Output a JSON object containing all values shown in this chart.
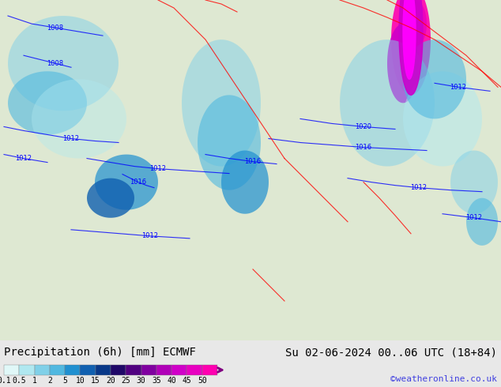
{
  "title_left": "Precipitation (6h) [mm] ECMWF",
  "title_right": "Su 02-06-2024 00..06 UTC (18+84)",
  "watermark": "©weatheronline.co.uk",
  "colorbar_values": [
    0.1,
    0.5,
    1,
    2,
    5,
    10,
    15,
    20,
    25,
    30,
    35,
    40,
    45,
    50
  ],
  "colorbar_colors": [
    "#e0f8f8",
    "#b0e8f0",
    "#80d0e8",
    "#50b8e0",
    "#2090d0",
    "#1060b0",
    "#083888",
    "#200868",
    "#500080",
    "#8000a0",
    "#b000b8",
    "#d000c8",
    "#e800c0",
    "#ff00b0"
  ],
  "bg_color": "#e8e8e8",
  "map_color": "#c8e8a0",
  "ocean_color": "#f0f0f0",
  "text_color": "#000000",
  "watermark_color": "#4040e0",
  "font_size_title": 10,
  "font_size_labels": 8,
  "font_size_watermark": 8,
  "precip_patches": [
    [
      80,
      350,
      70,
      60,
      0.5,
      "#80d0e8"
    ],
    [
      60,
      300,
      50,
      40,
      0.6,
      "#50b8e0"
    ],
    [
      100,
      280,
      60,
      50,
      0.4,
      "#b0e8f0"
    ],
    [
      160,
      200,
      40,
      35,
      0.7,
      "#2090d0"
    ],
    [
      140,
      180,
      30,
      25,
      0.8,
      "#1060b0"
    ],
    [
      280,
      300,
      50,
      80,
      0.5,
      "#80d0e8"
    ],
    [
      290,
      250,
      40,
      60,
      0.6,
      "#50b8e0"
    ],
    [
      310,
      200,
      30,
      40,
      0.7,
      "#2090d0"
    ],
    [
      520,
      380,
      25,
      70,
      0.9,
      "#ff00b0"
    ],
    [
      510,
      350,
      20,
      50,
      0.95,
      "#d000c8"
    ],
    [
      525,
      400,
      15,
      30,
      0.8,
      "#e800c0"
    ],
    [
      490,
      300,
      60,
      80,
      0.5,
      "#80d0e8"
    ],
    [
      560,
      280,
      50,
      60,
      0.5,
      "#b0e8f0"
    ],
    [
      550,
      330,
      40,
      50,
      0.6,
      "#50b8e0"
    ],
    [
      600,
      200,
      30,
      40,
      0.5,
      "#80d0e8"
    ],
    [
      610,
      150,
      20,
      30,
      0.6,
      "#50b8e0"
    ]
  ],
  "blue_isobars": [
    {
      "label": "1008",
      "x": [
        10,
        40,
        70,
        100,
        130
      ],
      "y": [
        410,
        400,
        395,
        390,
        385
      ]
    },
    {
      "label": "1008",
      "x": [
        30,
        50,
        70,
        90
      ],
      "y": [
        360,
        355,
        350,
        345
      ]
    },
    {
      "label": "1012",
      "x": [
        5,
        30,
        60,
        90,
        120,
        150
      ],
      "y": [
        270,
        265,
        260,
        255,
        252,
        250
      ]
    },
    {
      "label": "1012",
      "x": [
        5,
        30,
        60
      ],
      "y": [
        235,
        230,
        225
      ]
    },
    {
      "label": "1012",
      "x": [
        110,
        140,
        170,
        200,
        230,
        260,
        290
      ],
      "y": [
        230,
        225,
        220,
        217,
        215,
        213,
        211
      ]
    },
    {
      "label": "1016",
      "x": [
        155,
        165,
        175,
        185,
        195
      ],
      "y": [
        210,
        205,
        200,
        196,
        193
      ]
    },
    {
      "label": "1016",
      "x": [
        260,
        290,
        320,
        350
      ],
      "y": [
        235,
        230,
        226,
        223
      ]
    },
    {
      "label": "1016",
      "x": [
        340,
        380,
        420,
        460,
        500,
        540
      ],
      "y": [
        255,
        250,
        247,
        244,
        242,
        240
      ]
    },
    {
      "label": "1020",
      "x": [
        380,
        420,
        460,
        500
      ],
      "y": [
        280,
        274,
        270,
        267
      ]
    },
    {
      "label": "1012",
      "x": [
        440,
        470,
        500,
        530,
        570,
        610
      ],
      "y": [
        205,
        200,
        196,
        193,
        190,
        188
      ]
    },
    {
      "label": "1012",
      "x": [
        550,
        580,
        620
      ],
      "y": [
        325,
        320,
        315
      ]
    },
    {
      "label": "1012",
      "x": [
        90,
        140,
        190,
        240
      ],
      "y": [
        140,
        136,
        132,
        129
      ]
    },
    {
      "label": "1012",
      "x": [
        560,
        600,
        634
      ],
      "y": [
        160,
        155,
        150
      ]
    }
  ],
  "red_isobars": [
    {
      "x": [
        200,
        220,
        240,
        260,
        280,
        300,
        320,
        340,
        360
      ],
      "y": [
        430,
        420,
        400,
        380,
        350,
        320,
        290,
        260,
        230
      ]
    },
    {
      "x": [
        360,
        380,
        400,
        420,
        440
      ],
      "y": [
        230,
        210,
        190,
        170,
        150
      ]
    },
    {
      "x": [
        320,
        340,
        360
      ],
      "y": [
        90,
        70,
        50
      ]
    },
    {
      "x": [
        430,
        460,
        490,
        520,
        550,
        580,
        610,
        634
      ],
      "y": [
        430,
        420,
        408,
        395,
        380,
        360,
        340,
        320
      ]
    },
    {
      "x": [
        260,
        280,
        300
      ],
      "y": [
        430,
        425,
        415
      ]
    },
    {
      "x": [
        490,
        510,
        530,
        550,
        570,
        590,
        610,
        630
      ],
      "y": [
        430,
        420,
        405,
        390,
        375,
        360,
        340,
        320
      ]
    },
    {
      "x": [
        460,
        480,
        500,
        520
      ],
      "y": [
        200,
        180,
        158,
        135
      ]
    }
  ]
}
